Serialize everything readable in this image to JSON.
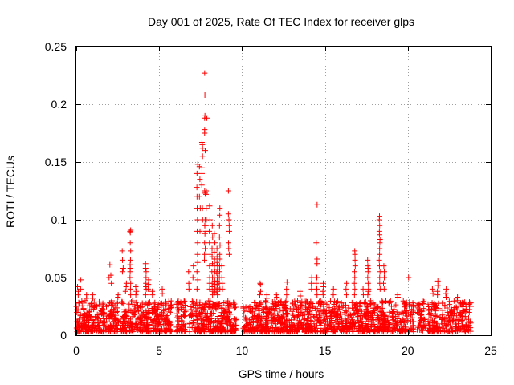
{
  "chart_data": {
    "type": "scatter",
    "title": "Day 001 of 2025, Rate Of TEC Index for receiver glps",
    "xlabel": "GPS time / hours",
    "ylabel": "ROTI / TECUs",
    "xlim": [
      0,
      25
    ],
    "ylim": [
      0,
      0.25
    ],
    "xticks": [
      "0",
      "5",
      "10",
      "15",
      "20",
      "25"
    ],
    "yticks": [
      "0",
      "0.05",
      "0.1",
      "0.15",
      "0.2",
      "0.25"
    ],
    "grid": true,
    "marker": "plus",
    "color": "#ff0000",
    "base_band": {
      "x_range": [
        0,
        23.8
      ],
      "y_range": [
        0.003,
        0.03
      ],
      "gaps": [
        [
          2.55,
          2.65
        ],
        [
          5.75,
          6.05
        ],
        [
          6.6,
          6.8
        ],
        [
          9.7,
          10.05
        ],
        [
          20.35,
          20.55
        ],
        [
          21.05,
          21.2
        ]
      ],
      "count": 2200
    },
    "spikes": [
      {
        "x": 0.1,
        "values": [
          0.042,
          0.038,
          0.035
        ]
      },
      {
        "x": 0.25,
        "values": [
          0.048,
          0.04
        ]
      },
      {
        "x": 0.6,
        "values": [
          0.035,
          0.032
        ]
      },
      {
        "x": 1.0,
        "values": [
          0.035,
          0.032
        ]
      },
      {
        "x": 2.0,
        "values": [
          0.061,
          0.05
        ]
      },
      {
        "x": 2.1,
        "values": [
          0.052,
          0.045
        ]
      },
      {
        "x": 2.5,
        "values": [
          0.035,
          0.033
        ]
      },
      {
        "x": 2.8,
        "values": [
          0.073,
          0.065,
          0.058,
          0.055
        ]
      },
      {
        "x": 3.0,
        "values": [
          0.045,
          0.042,
          0.038
        ]
      },
      {
        "x": 3.25,
        "values": [
          0.091,
          0.09,
          0.089,
          0.08,
          0.073,
          0.065,
          0.061,
          0.058,
          0.055,
          0.05,
          0.045,
          0.04,
          0.035
        ]
      },
      {
        "x": 3.6,
        "values": [
          0.042,
          0.038,
          0.035
        ]
      },
      {
        "x": 4.2,
        "values": [
          0.062,
          0.058,
          0.055,
          0.05,
          0.045,
          0.042,
          0.04,
          0.035
        ]
      },
      {
        "x": 4.35,
        "values": [
          0.048,
          0.044,
          0.04
        ]
      },
      {
        "x": 4.6,
        "values": [
          0.038,
          0.035
        ]
      },
      {
        "x": 5.2,
        "values": [
          0.04,
          0.036
        ]
      },
      {
        "x": 6.8,
        "values": [
          0.055,
          0.045,
          0.04
        ]
      },
      {
        "x": 7.05,
        "values": [
          0.06,
          0.05
        ]
      },
      {
        "x": 7.3,
        "values": [
          0.148,
          0.14,
          0.128,
          0.12,
          0.11,
          0.1,
          0.09,
          0.08,
          0.07,
          0.063,
          0.055,
          0.048,
          0.04
        ]
      },
      {
        "x": 7.45,
        "values": [
          0.146,
          0.135,
          0.12,
          0.11,
          0.09
        ]
      },
      {
        "x": 7.6,
        "values": [
          0.167,
          0.165,
          0.162,
          0.155,
          0.145,
          0.14,
          0.13,
          0.11,
          0.1
        ]
      },
      {
        "x": 7.75,
        "values": [
          0.227,
          0.208,
          0.19,
          0.188,
          0.178,
          0.175,
          0.16,
          0.125,
          0.123,
          0.1,
          0.095,
          0.088,
          0.08,
          0.075,
          0.07,
          0.065
        ]
      },
      {
        "x": 7.85,
        "values": [
          0.188,
          0.125,
          0.124,
          0.122,
          0.11,
          0.1,
          0.095,
          0.09
        ]
      },
      {
        "x": 8.05,
        "values": [
          0.112,
          0.1,
          0.09,
          0.08,
          0.07,
          0.06,
          0.05,
          0.045,
          0.04
        ]
      },
      {
        "x": 8.2,
        "values": [
          0.095,
          0.085,
          0.075,
          0.068,
          0.062,
          0.055,
          0.05,
          0.045,
          0.042,
          0.038,
          0.035
        ]
      },
      {
        "x": 8.35,
        "values": [
          0.088,
          0.08,
          0.072,
          0.066,
          0.06,
          0.055,
          0.05,
          0.047,
          0.044,
          0.04,
          0.037
        ]
      },
      {
        "x": 8.5,
        "values": [
          0.075,
          0.068,
          0.063,
          0.06,
          0.057,
          0.054,
          0.05,
          0.047,
          0.044,
          0.041,
          0.038,
          0.035
        ]
      },
      {
        "x": 8.65,
        "values": [
          0.11,
          0.104,
          0.095,
          0.085,
          0.078,
          0.07,
          0.066,
          0.06,
          0.055,
          0.05,
          0.045,
          0.04
        ]
      },
      {
        "x": 8.8,
        "values": [
          0.06,
          0.05,
          0.045,
          0.04
        ]
      },
      {
        "x": 9.2,
        "values": [
          0.125,
          0.105,
          0.1,
          0.095,
          0.09,
          0.08,
          0.075,
          0.07
        ]
      },
      {
        "x": 11.1,
        "values": [
          0.045,
          0.044,
          0.038,
          0.035
        ]
      },
      {
        "x": 11.5,
        "values": [
          0.035,
          0.032
        ]
      },
      {
        "x": 12.1,
        "values": [
          0.035,
          0.033
        ]
      },
      {
        "x": 12.7,
        "values": [
          0.046,
          0.04,
          0.035
        ]
      },
      {
        "x": 13.5,
        "values": [
          0.038,
          0.034
        ]
      },
      {
        "x": 14.2,
        "values": [
          0.05,
          0.045,
          0.04
        ]
      },
      {
        "x": 14.5,
        "values": [
          0.113,
          0.08,
          0.066,
          0.062,
          0.05,
          0.045,
          0.04,
          0.035
        ]
      },
      {
        "x": 14.9,
        "values": [
          0.045,
          0.042,
          0.038,
          0.035
        ]
      },
      {
        "x": 15.5,
        "values": [
          0.04,
          0.035
        ]
      },
      {
        "x": 16.3,
        "values": [
          0.045,
          0.04,
          0.035
        ]
      },
      {
        "x": 16.8,
        "values": [
          0.073,
          0.07,
          0.065,
          0.06,
          0.055,
          0.05,
          0.045,
          0.04,
          0.035
        ]
      },
      {
        "x": 17.3,
        "values": [
          0.04,
          0.035
        ]
      },
      {
        "x": 17.6,
        "values": [
          0.065,
          0.06,
          0.058,
          0.055,
          0.05,
          0.045,
          0.04,
          0.038,
          0.035
        ]
      },
      {
        "x": 18.3,
        "values": [
          0.103,
          0.1,
          0.095,
          0.09,
          0.087,
          0.083,
          0.08,
          0.075,
          0.07,
          0.065,
          0.06,
          0.055,
          0.05,
          0.045,
          0.04
        ]
      },
      {
        "x": 18.55,
        "values": [
          0.06,
          0.055,
          0.05,
          0.045,
          0.04
        ]
      },
      {
        "x": 19.4,
        "values": [
          0.035,
          0.033
        ]
      },
      {
        "x": 20.05,
        "values": [
          0.05
        ]
      },
      {
        "x": 20.3,
        "values": [
          0.028,
          0.025
        ]
      },
      {
        "x": 21.5,
        "values": [
          0.04,
          0.036
        ]
      },
      {
        "x": 21.8,
        "values": [
          0.047,
          0.043,
          0.038,
          0.035
        ]
      },
      {
        "x": 22.3,
        "values": [
          0.04,
          0.036,
          0.033
        ]
      },
      {
        "x": 23.0,
        "values": [
          0.033,
          0.03
        ]
      },
      {
        "x": 23.8,
        "values": [
          0.028,
          0.025
        ]
      }
    ]
  }
}
